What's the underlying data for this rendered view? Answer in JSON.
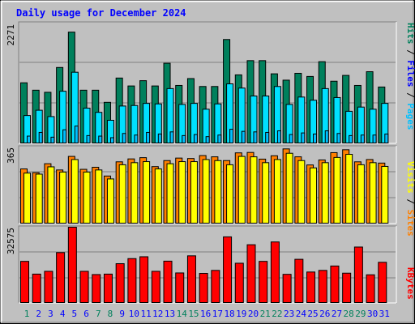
{
  "title": "Daily usage for December 2024",
  "colors": {
    "background": "#C0C0C0",
    "title": "#0000FF",
    "hits": "#00805C",
    "files": "#00E0FF",
    "pages": "#00C0FF",
    "sites": "#FF8000",
    "visits": "#FFFF00",
    "kbytes": "#FF0000",
    "weekday": "#0000FF",
    "weekend": "#00805C"
  },
  "y_axis_labels": {
    "top": "2271",
    "middle": "365",
    "bottom": "32575"
  },
  "side_labels": {
    "pages": "Pages",
    "files": "Files",
    "hits": "Hits",
    "sites": "Sites",
    "visits": "Visits",
    "kbytes": "KBytes",
    "sep": " / "
  },
  "chart_data": {
    "type": "bar",
    "title": "Daily usage for December 2024",
    "x": [
      "1",
      "2",
      "3",
      "4",
      "5",
      "6",
      "7",
      "8",
      "9",
      "10",
      "11",
      "12",
      "13",
      "14",
      "15",
      "16",
      "17",
      "18",
      "19",
      "20",
      "21",
      "22",
      "23",
      "24",
      "25",
      "26",
      "27",
      "28",
      "29",
      "30",
      "31"
    ],
    "weekend_days": [
      "1",
      "7",
      "8",
      "14",
      "15",
      "21",
      "22",
      "28",
      "29"
    ],
    "panels": [
      {
        "ymax": 2271,
        "series": [
          {
            "name": "Hits",
            "values": [
              1140,
              1000,
              960,
              1430,
              2100,
              1000,
              1000,
              770,
              1230,
              1080,
              1180,
              1080,
              1510,
              1090,
              1220,
              1070,
              1070,
              1960,
              1290,
              1560,
              1560,
              1310,
              1190,
              1320,
              1260,
              1540,
              1170,
              1280,
              1090,
              1350,
              1060
            ]
          },
          {
            "name": "Files",
            "values": [
              520,
              620,
              500,
              980,
              1340,
              660,
              580,
              430,
              700,
              710,
              750,
              740,
              1030,
              730,
              750,
              640,
              740,
              1120,
              1040,
              890,
              890,
              1070,
              730,
              870,
              810,
              1030,
              860,
              600,
              680,
              640,
              750
            ]
          },
          {
            "name": "Pages",
            "values": [
              130,
              200,
              110,
              250,
              320,
              140,
              130,
              100,
              180,
              150,
              200,
              170,
              210,
              140,
              160,
              120,
              150,
              260,
              220,
              210,
              200,
              230,
              160,
              190,
              170,
              230,
              180,
              140,
              150,
              150,
              170
            ]
          }
        ]
      },
      {
        "ymax": 365,
        "series": [
          {
            "name": "Sites",
            "values": [
              260,
              242,
              285,
              255,
              320,
              258,
              268,
              226,
              294,
              308,
              314,
              271,
              300,
              312,
              310,
              324,
              318,
              300,
              337,
              339,
              307,
              323,
              356,
              318,
              279,
              303,
              338,
              352,
              294,
              305,
              288
            ]
          },
          {
            "name": "Visits",
            "values": [
              240,
              235,
              270,
              245,
              305,
              245,
              255,
              212,
              280,
              290,
              295,
              260,
              285,
              295,
              295,
              305,
              300,
              280,
              320,
              318,
              290,
              305,
              335,
              300,
              265,
              290,
              315,
              330,
              280,
              290,
              272
            ]
          }
        ]
      },
      {
        "ymax": 32575,
        "series": [
          {
            "name": "KBytes",
            "values": [
              17800,
              12300,
              13500,
              21600,
              32575,
              13500,
              12100,
              12300,
              16800,
              19000,
              19800,
              13500,
              17900,
              12800,
              20200,
              12600,
              13900,
              28400,
              17000,
              25000,
              17800,
              26200,
              12200,
              18700,
              13200,
              13900,
              15800,
              12700,
              24000,
              12000,
              17400
            ]
          }
        ]
      }
    ]
  }
}
